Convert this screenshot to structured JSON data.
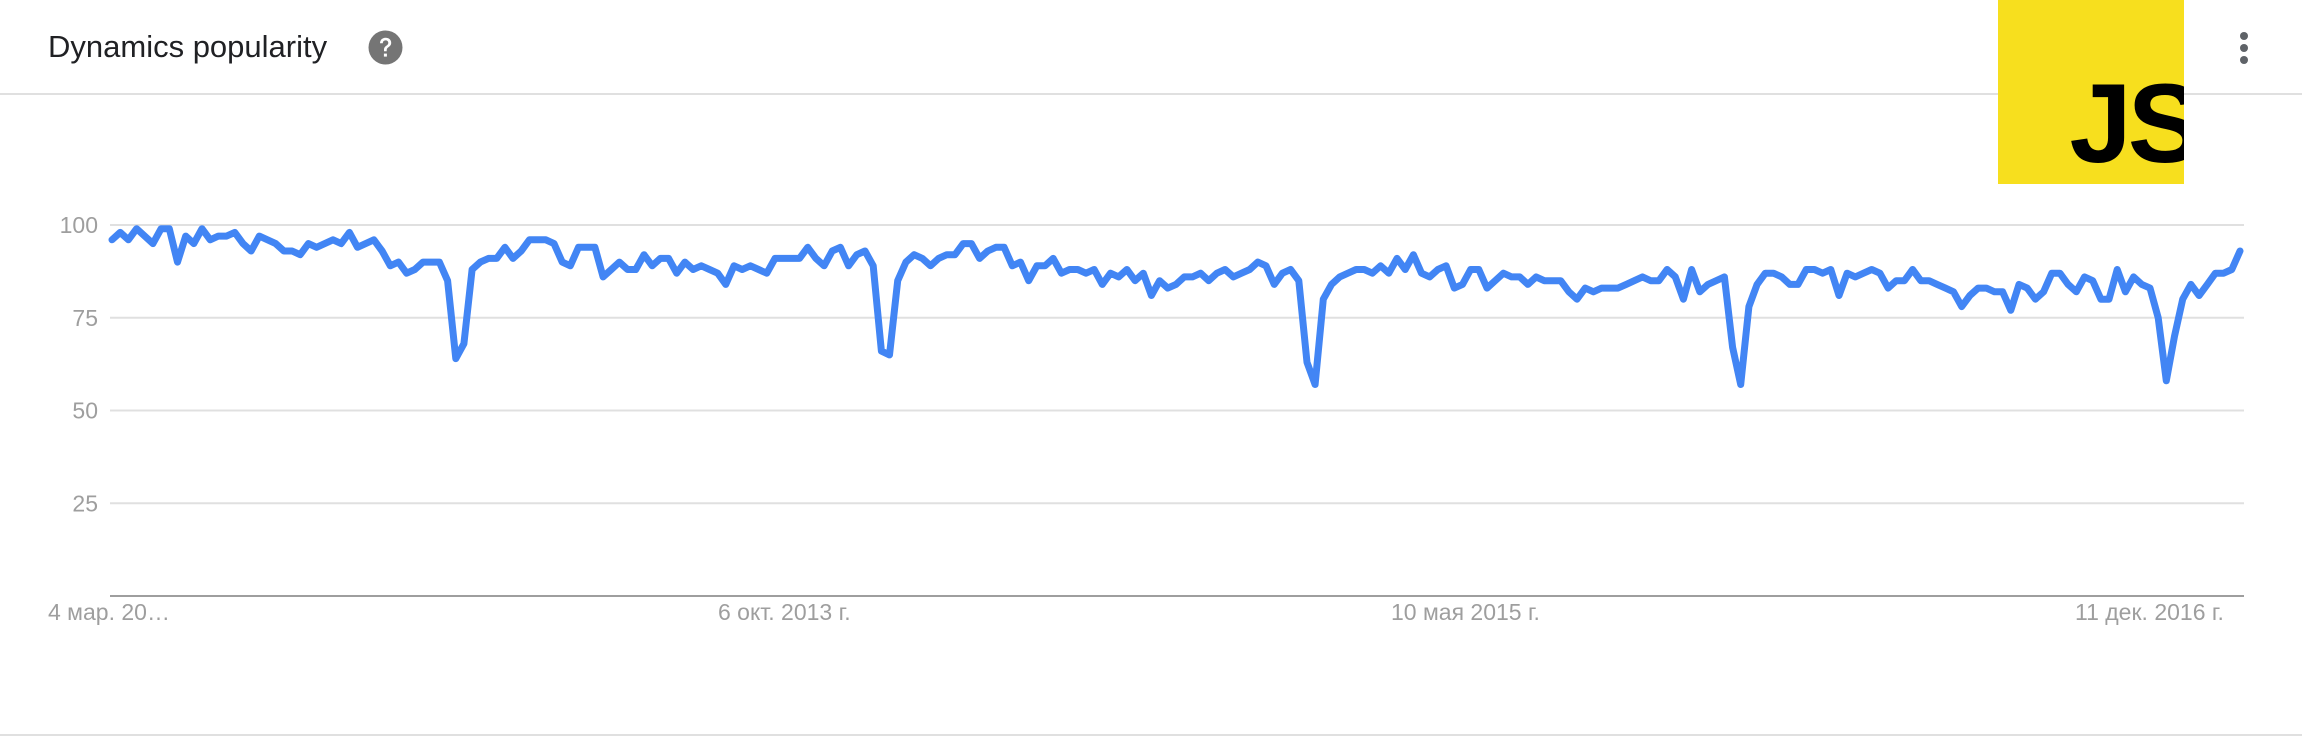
{
  "header": {
    "title": "Dynamics popularity",
    "help_icon": "help-circle-icon",
    "logo": "javascript-logo",
    "logo_text": "JS",
    "menu_icon": "more-vert-icon"
  },
  "colors": {
    "line": "#4285f4",
    "grid": "#e0e0e0",
    "axis": "#9e9e9e",
    "tick_text": "#9e9e9e",
    "logo_bg": "#f7df1e",
    "logo_fg": "#000000"
  },
  "chart_data": {
    "type": "line",
    "title": "",
    "xlabel": "",
    "ylabel": "",
    "ylim": [
      0,
      100
    ],
    "yticks": [
      25,
      50,
      75,
      100
    ],
    "xtick_labels": [
      "4 мар. 20…",
      "6 окт. 2013 г.",
      "10 мая 2015 г.",
      "11 дек. 2016 г."
    ],
    "grid": true,
    "series": [
      {
        "values": [
          96,
          98,
          96,
          99,
          97,
          95,
          99,
          99,
          90,
          97,
          95,
          99,
          96,
          97,
          97,
          98,
          95,
          93,
          97,
          96,
          95,
          93,
          93,
          92,
          95,
          94,
          95,
          96,
          95,
          98,
          94,
          95,
          96,
          93,
          89,
          90,
          87,
          88,
          90,
          90,
          90,
          85,
          64,
          68,
          88,
          90,
          91,
          91,
          94,
          91,
          93,
          96,
          96,
          96,
          95,
          90,
          89,
          94,
          94,
          94,
          86,
          88,
          90,
          88,
          88,
          92,
          89,
          91,
          91,
          87,
          90,
          88,
          89,
          88,
          87,
          84,
          89,
          88,
          89,
          88,
          87,
          91,
          91,
          91,
          91,
          94,
          91,
          89,
          93,
          94,
          89,
          92,
          93,
          89,
          66,
          65,
          85,
          90,
          92,
          91,
          89,
          91,
          92,
          92,
          95,
          95,
          91,
          93,
          94,
          94,
          89,
          90,
          85,
          89,
          89,
          91,
          87,
          88,
          88,
          87,
          88,
          84,
          87,
          86,
          88,
          85,
          87,
          81,
          85,
          83,
          84,
          86,
          86,
          87,
          85,
          87,
          88,
          86,
          87,
          88,
          90,
          89,
          84,
          87,
          88,
          85,
          63,
          57,
          80,
          84,
          86,
          87,
          88,
          88,
          87,
          89,
          87,
          91,
          88,
          92,
          87,
          86,
          88,
          89,
          83,
          84,
          88,
          88,
          83,
          85,
          87,
          86,
          86,
          84,
          86,
          85,
          85,
          85,
          82,
          80,
          83,
          82,
          83,
          83,
          83,
          84,
          85,
          86,
          85,
          85,
          88,
          86,
          80,
          88,
          82,
          84,
          85,
          86,
          67,
          57,
          78,
          84,
          87,
          87,
          86,
          84,
          84,
          88,
          88,
          87,
          88,
          81,
          87,
          86,
          87,
          88,
          87,
          83,
          85,
          85,
          88,
          85,
          85,
          84,
          83,
          82,
          78,
          81,
          83,
          83,
          82,
          82,
          77,
          84,
          83,
          80,
          82,
          87,
          87,
          84,
          82,
          86,
          85,
          80,
          80,
          88,
          82,
          86,
          84,
          83,
          75,
          58,
          70,
          80,
          84,
          81,
          84,
          87,
          87,
          88,
          93
        ]
      }
    ]
  }
}
